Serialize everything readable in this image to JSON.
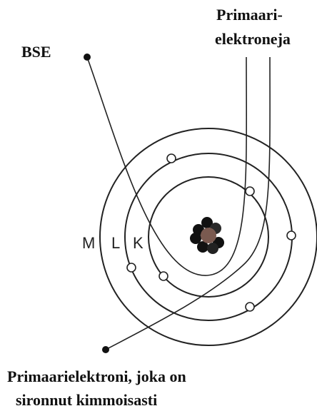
{
  "labels": {
    "bse": "BSE",
    "primary_top": [
      "Primaari-",
      "elektroneja"
    ],
    "shells": [
      "M",
      "L",
      "K"
    ],
    "caption": [
      "Primaarielektroni, joka on",
      "sironnut kimmoisasti"
    ]
  }
}
